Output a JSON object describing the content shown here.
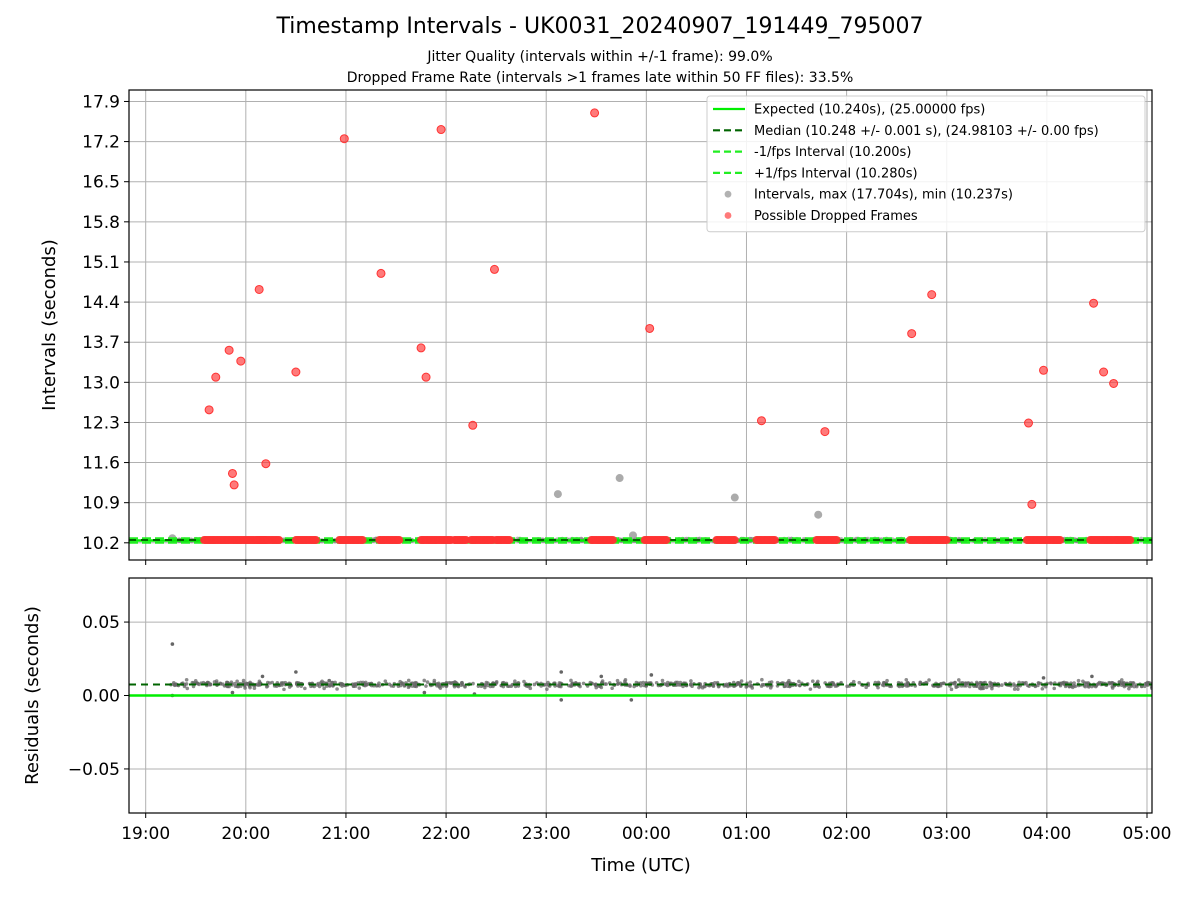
{
  "figure": {
    "title": "Timestamp Intervals - UK0031_20240907_191449_795007",
    "subtitle_jitter": "Jitter Quality (intervals within +/-1 frame): 99.0%",
    "subtitle_dropped": "Dropped Frame Rate (intervals >1 frames late within 50 FF files): 33.5%",
    "xlabel": "Time (UTC)"
  },
  "colors": {
    "expected": "#00ee00",
    "median": "#006400",
    "band": "#22ee22",
    "intervals": "#888888",
    "dropped": "#ff3333",
    "grid": "#b0b0b0"
  },
  "chart_data": [
    {
      "type": "scatter",
      "panel": "top",
      "ylabel": "Intervals (seconds)",
      "xlim": [
        "18:50",
        "05:03"
      ],
      "ylim": [
        9.9,
        18.1
      ],
      "yticks": [
        "10.2",
        "10.9",
        "11.6",
        "12.3",
        "13.0",
        "13.7",
        "14.4",
        "15.1",
        "15.8",
        "16.5",
        "17.2",
        "17.9"
      ],
      "xticks": [
        "19:00",
        "20:00",
        "21:00",
        "22:00",
        "23:00",
        "00:00",
        "01:00",
        "02:00",
        "03:00",
        "04:00",
        "05:00"
      ],
      "grid": true,
      "legend_position": "top-right",
      "legend": [
        {
          "label": "Expected (10.240s), (25.00000 fps)",
          "style": "solid",
          "color_key": "expected"
        },
        {
          "label": "Median (10.248 +/- 0.001 s), (24.98103 +/- 0.00 fps)",
          "style": "dashed",
          "color_key": "median"
        },
        {
          "label": "-1/fps Interval (10.200s)",
          "style": "dashed",
          "color_key": "band"
        },
        {
          "label": "+1/fps Interval (10.280s)",
          "style": "dashed",
          "color_key": "band"
        },
        {
          "label": "Intervals, max (17.704s), min (10.237s)",
          "style": "dot",
          "color_key": "intervals"
        },
        {
          "label": "Possible Dropped Frames",
          "style": "dot",
          "color_key": "dropped"
        }
      ],
      "lines": {
        "expected": 10.24,
        "median": 10.248,
        "minus_1fps": 10.2,
        "plus_1fps": 10.28
      },
      "interval_range": [
        "19:15",
        "05:03"
      ],
      "gray_points": [
        {
          "x": "23:07",
          "y": 11.05
        },
        {
          "x": "23:44",
          "y": 11.33
        },
        {
          "x": "23:52",
          "y": 10.33
        },
        {
          "x": "00:53",
          "y": 10.99
        },
        {
          "x": "01:43",
          "y": 10.69
        },
        {
          "x": "19:16",
          "y": 10.28
        }
      ],
      "dropped_clusters": [
        [
          "19:35",
          "20:12"
        ],
        [
          "20:07",
          "20:20"
        ],
        [
          "20:30",
          "20:42"
        ],
        [
          "20:56",
          "21:10"
        ],
        [
          "21:20",
          "21:32"
        ],
        [
          "21:45",
          "22:03"
        ],
        [
          "22:05",
          "22:12"
        ],
        [
          "22:15",
          "22:28"
        ],
        [
          "22:30",
          "22:38"
        ],
        [
          "23:27",
          "23:40"
        ],
        [
          "23:59",
          "00:12"
        ],
        [
          "00:42",
          "00:53"
        ],
        [
          "01:06",
          "01:17"
        ],
        [
          "01:42",
          "01:54"
        ],
        [
          "02:38",
          "02:50"
        ],
        [
          "02:50",
          "03:00"
        ],
        [
          "03:48",
          "04:08"
        ],
        [
          "04:26",
          "04:42"
        ],
        [
          "04:42",
          "04:50"
        ]
      ],
      "dropped_points": [
        {
          "x": "19:38",
          "y": 12.52
        },
        {
          "x": "19:42",
          "y": 13.09
        },
        {
          "x": "19:50",
          "y": 13.56
        },
        {
          "x": "19:52",
          "y": 11.41
        },
        {
          "x": "19:53",
          "y": 11.21
        },
        {
          "x": "19:57",
          "y": 13.37
        },
        {
          "x": "20:08",
          "y": 14.62
        },
        {
          "x": "20:12",
          "y": 11.58
        },
        {
          "x": "20:30",
          "y": 13.18
        },
        {
          "x": "20:59",
          "y": 17.25
        },
        {
          "x": "21:21",
          "y": 14.9
        },
        {
          "x": "21:45",
          "y": 13.6
        },
        {
          "x": "21:48",
          "y": 13.09
        },
        {
          "x": "21:57",
          "y": 17.41
        },
        {
          "x": "22:16",
          "y": 12.25
        },
        {
          "x": "22:29",
          "y": 14.97
        },
        {
          "x": "23:29",
          "y": 17.7
        },
        {
          "x": "00:02",
          "y": 13.94
        },
        {
          "x": "01:09",
          "y": 12.33
        },
        {
          "x": "01:47",
          "y": 12.14
        },
        {
          "x": "02:39",
          "y": 13.85
        },
        {
          "x": "02:51",
          "y": 14.53
        },
        {
          "x": "03:49",
          "y": 12.29
        },
        {
          "x": "03:51",
          "y": 10.87
        },
        {
          "x": "03:58",
          "y": 13.21
        },
        {
          "x": "04:28",
          "y": 14.38
        },
        {
          "x": "04:34",
          "y": 13.18
        },
        {
          "x": "04:40",
          "y": 12.98
        }
      ]
    },
    {
      "type": "scatter",
      "panel": "bottom",
      "ylabel": "Residuals (seconds)",
      "xlabel": "Time (UTC)",
      "xlim": [
        "18:50",
        "05:03"
      ],
      "ylim": [
        -0.08,
        0.08
      ],
      "yticks": [
        "0.05",
        "0.00",
        "−0.05"
      ],
      "ytick_values": [
        0.05,
        0.0,
        -0.05
      ],
      "xticks": [
        "19:00",
        "20:00",
        "21:00",
        "22:00",
        "23:00",
        "00:00",
        "01:00",
        "02:00",
        "03:00",
        "04:00",
        "05:00"
      ],
      "grid": true,
      "lines": {
        "zero": 0.0,
        "median": 0.0075
      },
      "residual_band": {
        "center": 0.0075,
        "spread": 0.0035
      },
      "outliers": [
        {
          "x": "19:16",
          "y": 0.035
        },
        {
          "x": "19:16",
          "y": 0.0
        },
        {
          "x": "20:30",
          "y": 0.016
        },
        {
          "x": "23:09",
          "y": 0.016
        },
        {
          "x": "23:09",
          "y": -0.003
        },
        {
          "x": "23:51",
          "y": -0.003
        },
        {
          "x": "00:03",
          "y": 0.014
        },
        {
          "x": "19:52",
          "y": 0.002
        },
        {
          "x": "21:47",
          "y": 0.002
        },
        {
          "x": "22:17",
          "y": 0.001
        },
        {
          "x": "23:33",
          "y": 0.013
        },
        {
          "x": "20:10",
          "y": 0.013
        },
        {
          "x": "04:27",
          "y": 0.013
        },
        {
          "x": "03:58",
          "y": 0.012
        }
      ]
    }
  ]
}
